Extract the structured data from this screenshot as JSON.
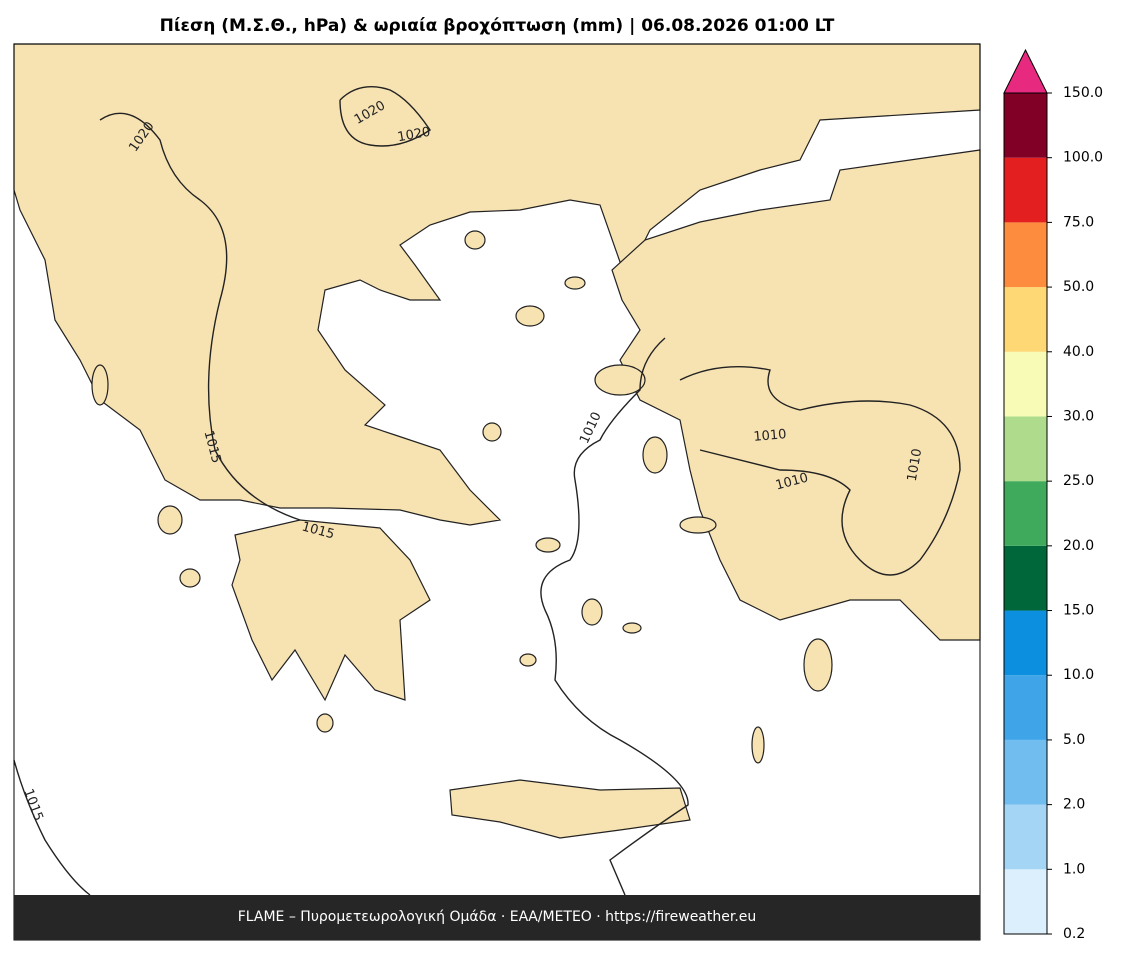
{
  "header": {
    "title": "Πίεση (Μ.Σ.Θ., hPa) & ωριαία βροχόπτωση (mm)  |  06.08.2026 01:00 LT"
  },
  "footer": {
    "text": "FLAME – Πυρομετεωρολογική Ομάδα · ΕΑΑ/METEO · https://fireweather.eu"
  },
  "map": {
    "land_color": "#f7e2b2",
    "isobar_labels": [
      "1020",
      "1020",
      "1020",
      "1015",
      "1015",
      "1015",
      "1010",
      "1010",
      "1010",
      "1010"
    ]
  },
  "colorbar": {
    "levels": [
      0.2,
      {
        "value": 1,
        "label": "1.0"
      },
      {
        "value": 2,
        "label": "2.0"
      },
      {
        "value": 5,
        "label": "5.0"
      },
      {
        "value": 10,
        "label": "10.0"
      },
      {
        "value": 15,
        "label": "15.0"
      },
      {
        "value": 20,
        "label": "20.0"
      },
      {
        "value": 25,
        "label": "25.0"
      },
      {
        "value": 30,
        "label": "30.0"
      },
      {
        "value": 40,
        "label": "40.0"
      },
      {
        "value": 50,
        "label": "50.0"
      },
      {
        "value": 75,
        "label": "75.0"
      },
      {
        "value": 100,
        "label": "100.0"
      },
      {
        "value": 150,
        "label": "150.0"
      }
    ],
    "colors": [
      "#dbeffd",
      "#a4d5f5",
      "#72bdf0",
      "#3fa5e8",
      "#0d8fe0",
      "#00673a",
      "#40aa5c",
      "#aedc8c",
      "#f7fbb6",
      "#fed875",
      "#fd8c3e",
      "#e31f1f",
      "#800026"
    ],
    "extend_color": "#e7297f"
  }
}
